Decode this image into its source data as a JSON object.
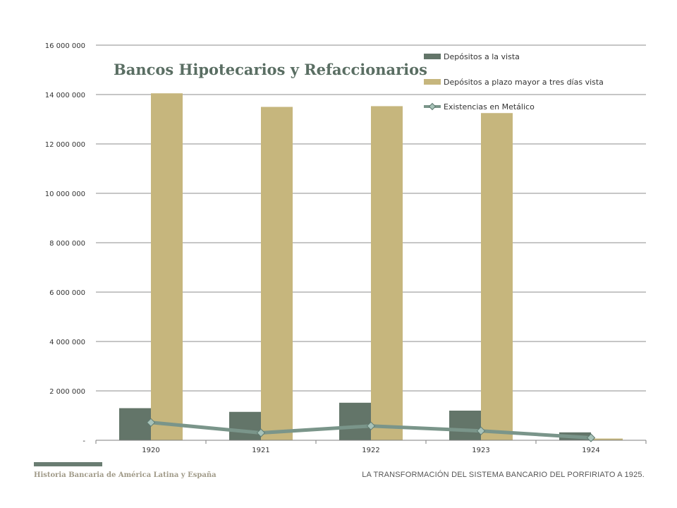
{
  "chart_data": {
    "type": "bar",
    "title": "Bancos Hipotecarios y Refaccionarios",
    "categories": [
      "1920",
      "1921",
      "1922",
      "1923",
      "1924"
    ],
    "ylim": [
      0,
      16000000
    ],
    "y_ticks": [
      {
        "value": 0,
        "label": "-"
      },
      {
        "value": 2000000,
        "label": "2 000 000"
      },
      {
        "value": 4000000,
        "label": "4 000 000"
      },
      {
        "value": 6000000,
        "label": "6 000 000"
      },
      {
        "value": 8000000,
        "label": "8 000 000"
      },
      {
        "value": 10000000,
        "label": "10 000 000"
      },
      {
        "value": 12000000,
        "label": "12 000 000"
      },
      {
        "value": 14000000,
        "label": "14 000 000"
      },
      {
        "value": 16000000,
        "label": "16 000 000"
      }
    ],
    "grid": true,
    "legend_position": "top-right",
    "series": [
      {
        "name": "Depósitos a la vista",
        "kind": "bar",
        "color": "#637569",
        "values": [
          1300000,
          1150000,
          1520000,
          1200000,
          320000
        ]
      },
      {
        "name": "Depósitos a plazo mayor a tres días vista",
        "kind": "bar",
        "color": "#c6b67d",
        "values": [
          14050000,
          13500000,
          13530000,
          13250000,
          70000
        ]
      },
      {
        "name": "Existencias en Metálico",
        "kind": "line",
        "color": "#7a958a",
        "marker_color": "#a7c2b8",
        "values": [
          720000,
          300000,
          580000,
          380000,
          100000
        ]
      }
    ]
  },
  "footer": {
    "left_text": "Historia Bancaria de América Latina y España",
    "right_text": "LA TRANSFORMACIÓN DEL SISTEMA BANCARIO DEL PORFIRIATO A 1925."
  }
}
